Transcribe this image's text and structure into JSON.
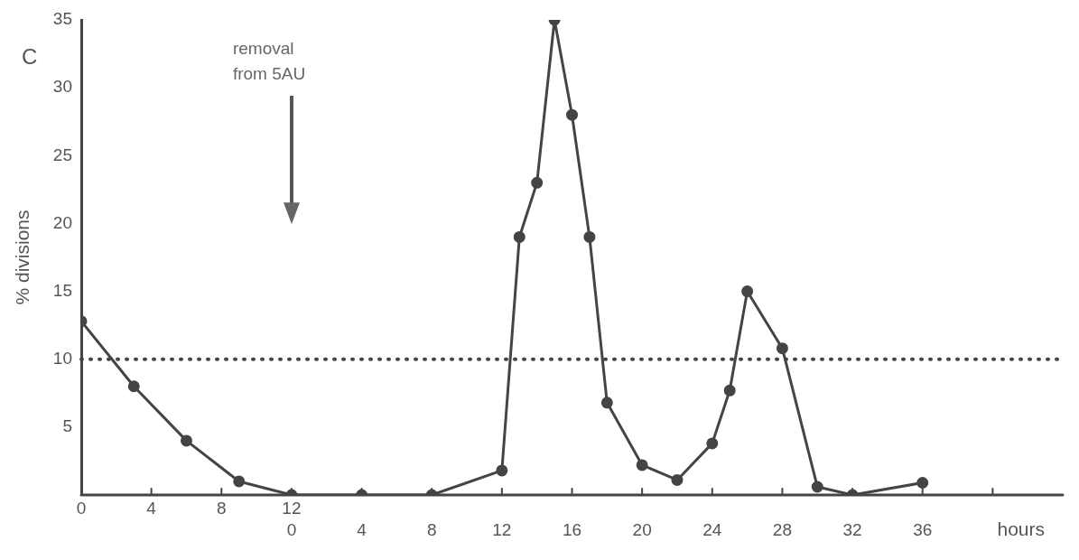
{
  "chart_data": {
    "type": "line",
    "ylabel": "% divisions",
    "xlabel": "hours",
    "annotations": [
      "C",
      "removal from 5AU"
    ],
    "x": [
      -12,
      -9,
      -6,
      -3,
      0,
      4,
      8,
      12,
      13,
      14,
      15,
      16,
      17,
      18,
      20,
      22,
      24,
      25,
      26,
      28,
      30,
      32,
      36
    ],
    "series": [
      {
        "color": "#444444",
        "values": [
          12.8,
          8,
          4,
          1,
          0,
          0,
          0,
          1.8,
          19,
          23,
          35,
          28,
          19,
          6.8,
          2.2,
          1.1,
          3.8,
          7.7,
          15,
          10.8,
          0.6,
          0,
          0.9
        ]
      }
    ],
    "xlim": [
      -12,
      44
    ],
    "xticks": [
      {
        "value": -12,
        "label": null
      },
      {
        "value": -8,
        "label": null
      },
      {
        "value": -4,
        "label": null
      },
      0,
      4,
      8,
      12,
      16,
      20,
      24,
      28,
      32,
      36,
      {
        "value": 40,
        "label": null
      }
    ],
    "x2lim": [
      0,
      56
    ],
    "x2ticks": [
      0,
      4,
      8,
      12
    ],
    "ylim": [
      0,
      35
    ],
    "yticks": [
      5,
      10,
      15,
      20,
      25,
      30,
      35
    ],
    "ref_lines": [
      {
        "axis": "y",
        "value": 10,
        "line_style": "dotted",
        "color": "#444444"
      }
    ],
    "marker": "circle",
    "line_style": "solid",
    "grid": false,
    "legend": false
  }
}
